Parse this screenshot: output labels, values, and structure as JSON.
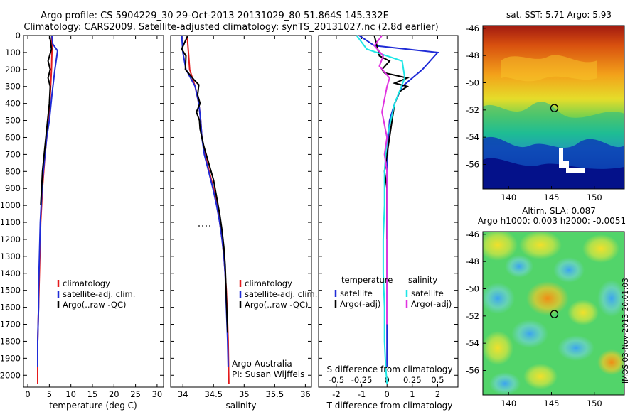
{
  "header": {
    "line1": "Argo profile: CS 5904229_30 29-Oct-2013 20131029_80 51.864S 145.332E",
    "line2": "Climatology: CARS2009. Satellite-adjusted climatology: synTS_20131027.nc (2.8d earlier)"
  },
  "colors": {
    "red": "#e41a1c",
    "blue": "#1f2bd6",
    "black": "#000000",
    "cyan": "#1ee6e6",
    "magenta": "#e033e0"
  },
  "chart_data": [
    {
      "id": "temperature",
      "type": "line",
      "xlabel": "temperature (deg C)",
      "ylabel": "",
      "xlim": [
        -1,
        31.5
      ],
      "ylim": [
        2070,
        0
      ],
      "xticks": [
        "0",
        "5",
        "10",
        "15",
        "20",
        "25",
        "30"
      ],
      "xtick_values": [
        0,
        5,
        10,
        15,
        20,
        25,
        30
      ],
      "yticks": [
        "0",
        "100",
        "200",
        "300",
        "400",
        "500",
        "600",
        "700",
        "800",
        "900",
        "1000",
        "1100",
        "1200",
        "1300",
        "1400",
        "1500",
        "1600",
        "1700",
        "1800",
        "1900",
        "2000"
      ],
      "ytick_values": [
        0,
        100,
        200,
        300,
        400,
        500,
        600,
        700,
        800,
        900,
        1000,
        1100,
        1200,
        1300,
        1400,
        1500,
        1600,
        1700,
        1800,
        1900,
        2000
      ],
      "legend": [
        "climatology",
        "satellite-adj. clim.",
        "Argo(..raw -QC)"
      ],
      "series": [
        {
          "name": "climatology",
          "color": "red",
          "x": [
            5.6,
            5.6,
            5.5,
            5.3,
            5.1,
            4.8,
            4.4,
            4.0,
            3.7,
            3.4,
            3.2,
            3.0,
            2.9,
            2.8,
            2.7,
            2.6,
            2.5,
            2.4,
            2.3,
            2.3,
            2.3
          ],
          "y": [
            0,
            100,
            200,
            300,
            400,
            500,
            600,
            700,
            800,
            900,
            1000,
            1100,
            1200,
            1300,
            1400,
            1500,
            1600,
            1700,
            1800,
            1900,
            2050
          ]
        },
        {
          "name": "satellite-adj. clim.",
          "color": "blue",
          "x": [
            5.6,
            5.8,
            6.9,
            6.3,
            5.6,
            5.0,
            4.4,
            4.0,
            3.6,
            3.3,
            3.1,
            2.9,
            2.8,
            2.7,
            2.6,
            2.5,
            2.5,
            2.4,
            2.3,
            2.3
          ],
          "y": [
            0,
            50,
            90,
            200,
            350,
            500,
            600,
            700,
            800,
            900,
            1000,
            1100,
            1200,
            1300,
            1400,
            1500,
            1600,
            1700,
            1800,
            1950
          ]
        },
        {
          "name": "Argo(..raw -QC)",
          "color": "black",
          "x": [
            5.1,
            5.5,
            4.7,
            5.2,
            4.7,
            5.2,
            5.0,
            4.6,
            4.2,
            3.8,
            3.4,
            3.2,
            3.0
          ],
          "y": [
            0,
            80,
            150,
            200,
            250,
            300,
            400,
            500,
            600,
            700,
            800,
            900,
            1000
          ]
        }
      ]
    },
    {
      "id": "salinity",
      "type": "line",
      "xlabel": "salinity",
      "ylabel": "",
      "xlim": [
        33.8,
        36.1
      ],
      "ylim": [
        2070,
        0
      ],
      "xticks": [
        "34",
        "34.5",
        "35",
        "35.5",
        "36"
      ],
      "xtick_values": [
        34,
        34.5,
        35,
        35.5,
        36
      ],
      "legend": [
        "climatology",
        "satellite-adj. clim.",
        "Argo(..raw -QC)"
      ],
      "series": [
        {
          "name": "climatology",
          "color": "red",
          "x": [
            34.07,
            34.09,
            34.11,
            34.2,
            34.26,
            34.29,
            34.31,
            34.36,
            34.43,
            34.5,
            34.56,
            34.6,
            34.64,
            34.67,
            34.69,
            34.71,
            34.72,
            34.73,
            34.74,
            34.75
          ],
          "y": [
            0,
            100,
            200,
            300,
            400,
            500,
            600,
            700,
            800,
            900,
            1000,
            1100,
            1200,
            1300,
            1400,
            1500,
            1600,
            1700,
            1800,
            2050
          ]
        },
        {
          "name": "satellite-adj. clim.",
          "color": "blue",
          "x": [
            33.98,
            34.0,
            34.05,
            34.2,
            34.26,
            34.29,
            34.31,
            34.35,
            34.42,
            34.49,
            34.55,
            34.6,
            34.64,
            34.67,
            34.69,
            34.7,
            34.71,
            34.72,
            34.73,
            34.74
          ],
          "y": [
            0,
            100,
            200,
            300,
            400,
            500,
            600,
            700,
            800,
            900,
            1000,
            1100,
            1200,
            1300,
            1400,
            1500,
            1600,
            1700,
            1800,
            1950
          ]
        },
        {
          "name": "Argo(..raw -QC)",
          "color": "black",
          "x": [
            34.08,
            33.98,
            34.05,
            34.04,
            34.18,
            34.26,
            34.24,
            34.28,
            34.22,
            34.27,
            34.28,
            34.34,
            34.42,
            34.5,
            34.55,
            34.6,
            34.64,
            34.67,
            34.69,
            34.7,
            34.71,
            34.72,
            34.73
          ],
          "y": [
            0,
            80,
            120,
            200,
            260,
            290,
            350,
            400,
            450,
            500,
            550,
            650,
            750,
            850,
            950,
            1050,
            1150,
            1250,
            1350,
            1450,
            1550,
            1650,
            1750
          ]
        }
      ]
    },
    {
      "id": "difference",
      "type": "line",
      "xlabel": "T difference from climatology",
      "xlabel_top": "S difference from climatology",
      "xlim": [
        -2.7,
        2.8
      ],
      "ylim": [
        2070,
        0
      ],
      "xticks": [
        "-2",
        "-1",
        "0",
        "1",
        "2"
      ],
      "xtick_values": [
        -2,
        -1,
        0,
        1,
        2
      ],
      "xticks_top": [
        "-0.5",
        "-0.25",
        "0",
        "0.25",
        "0.5"
      ],
      "legend_titles": [
        "temperature",
        "salinity"
      ],
      "legend": [
        "satellite",
        "Argo(-adj)",
        "satellite",
        "Argo(-adj)"
      ],
      "series": [
        {
          "name": "satellite",
          "group": "temperature",
          "color": "blue",
          "x": [
            -1.1,
            -0.5,
            2.0,
            1.4,
            0.6,
            0.3,
            0.1,
            0.05,
            0,
            0,
            0,
            0,
            0,
            0
          ],
          "y": [
            0,
            60,
            100,
            200,
            300,
            400,
            500,
            600,
            800,
            1000,
            1200,
            1400,
            1700,
            1950
          ]
        },
        {
          "name": "Argo(-adj)",
          "group": "temperature",
          "color": "black",
          "x": [
            -0.5,
            -0.4,
            -0.3,
            0.1,
            -0.2,
            -0.1,
            0.8,
            0.3,
            0.8,
            0.5,
            0.3,
            0.2,
            0.1,
            0,
            -0.1,
            0,
            0,
            0,
            0
          ],
          "y": [
            0,
            60,
            120,
            150,
            200,
            220,
            250,
            280,
            300,
            330,
            400,
            500,
            600,
            700,
            800,
            900,
            1000,
            1100,
            1200
          ]
        },
        {
          "name": "satellite",
          "group": "salinity",
          "color": "cyan",
          "x": [
            -1.2,
            -0.8,
            0.6,
            0.7,
            0.3,
            0,
            -0.1,
            -0.1,
            -0.15,
            -0.15,
            -0.1,
            -0.1,
            -0.05,
            0
          ],
          "y": [
            0,
            80,
            150,
            250,
            400,
            600,
            800,
            1000,
            1200,
            1400,
            1600,
            1800,
            1950,
            2050
          ]
        },
        {
          "name": "Argo(-adj)",
          "group": "salinity",
          "color": "magenta",
          "x": [
            -0.2,
            -0.5,
            -0.15,
            -0.3,
            0.1,
            0,
            -0.2,
            0,
            -0.1,
            0,
            0,
            0,
            0,
            0,
            0,
            0
          ],
          "y": [
            0,
            60,
            120,
            180,
            250,
            300,
            450,
            600,
            700,
            800,
            900,
            1000,
            1100,
            1300,
            1500,
            1700
          ]
        }
      ],
      "annotation": [
        "Argo Australia",
        "PI: Susan Wijffels"
      ]
    },
    {
      "id": "sst-map",
      "type": "heatmap",
      "title": "sat. SST: 5.71  Argo: 5.93",
      "xlim": [
        137,
        153.5
      ],
      "ylim": [
        -57.8,
        -45.8
      ],
      "xticks": [
        "140",
        "145",
        "150"
      ],
      "xtick_values": [
        140,
        145,
        150
      ],
      "yticks": [
        "-46",
        "-48",
        "-50",
        "-52",
        "-54",
        "-56"
      ],
      "ytick_values": [
        -46,
        -48,
        -50,
        -52,
        -54,
        -56
      ],
      "marker": {
        "lon": 145.33,
        "lat": -51.86
      }
    },
    {
      "id": "sla-map",
      "type": "heatmap",
      "title": "Altim. SLA: 0.087",
      "subtitle": "Argo h1000: 0.003  h2000: -0.0051",
      "xlim": [
        137,
        153.5
      ],
      "ylim": [
        -57.8,
        -45.8
      ],
      "xticks": [
        "140",
        "145",
        "150"
      ],
      "xtick_values": [
        140,
        145,
        150
      ],
      "yticks": [
        "-46",
        "-48",
        "-50",
        "-52",
        "-54",
        "-56"
      ],
      "ytick_values": [
        -46,
        -48,
        -50,
        -52,
        -54,
        -56
      ],
      "marker": {
        "lon": 145.33,
        "lat": -51.86
      }
    }
  ],
  "stamp": "IMOS 03-Nov-2013 20:01:03"
}
